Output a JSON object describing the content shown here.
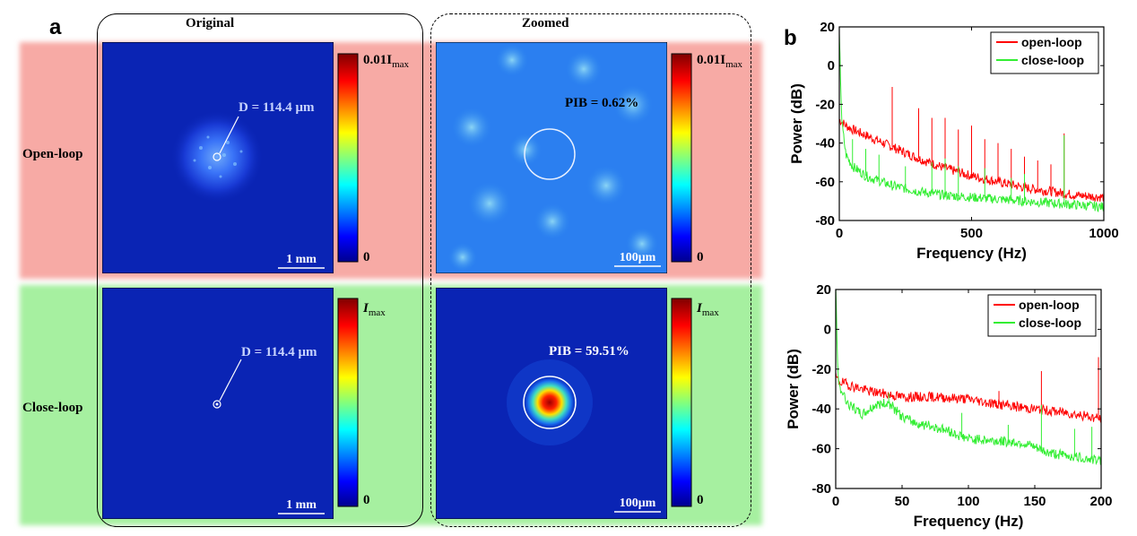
{
  "panel_a": {
    "letter": "a",
    "col_headers": {
      "original": "Original",
      "zoomed": "Zoomed"
    },
    "row_labels": {
      "open": "Open-loop",
      "close": "Close-loop"
    },
    "open_original": {
      "annotation": "D = 114.4 μm",
      "scalebar": "1 mm",
      "cbar_max": "0.01I",
      "cbar_sub": "max",
      "cbar_min": "0"
    },
    "open_zoomed": {
      "annotation": "PIB = 0.62%",
      "scalebar": "100μm",
      "cbar_max": "0.01I",
      "cbar_sub": "max",
      "cbar_min": "0"
    },
    "close_original": {
      "annotation": "D = 114.4 μm",
      "scalebar": "1 mm",
      "cbar_max": "I",
      "cbar_sub": "max",
      "cbar_min": "0"
    },
    "close_zoomed": {
      "annotation": "PIB = 59.51%",
      "scalebar": "100μm",
      "cbar_max": "I",
      "cbar_sub": "max",
      "cbar_min": "0"
    }
  },
  "panel_b": {
    "letter": "b"
  },
  "chart_data": [
    {
      "type": "line",
      "xlabel": "Frequency (Hz)",
      "ylabel": "Power (dB)",
      "xlim": [
        0,
        1000
      ],
      "ylim": [
        -80,
        20
      ],
      "xticks": [
        "0",
        "500",
        "1000"
      ],
      "yticks": [
        "-80",
        "-60",
        "-40",
        "-20",
        "0",
        "20"
      ],
      "legend_position": "top-right",
      "series": [
        {
          "name": "open-loop",
          "color": "#ff0000",
          "x": [
            0,
            10,
            25,
            50,
            100,
            200,
            300,
            400,
            500,
            600,
            700,
            800,
            900,
            1000
          ],
          "y": [
            -28,
            -29,
            -31,
            -33,
            -36,
            -42,
            -48,
            -53,
            -57,
            -60,
            -63,
            -65,
            -67,
            -68
          ],
          "spikes": [
            [
              200,
              -11
            ],
            [
              300,
              -22
            ],
            [
              350,
              -27
            ],
            [
              400,
              -27
            ],
            [
              450,
              -33
            ],
            [
              500,
              -31
            ],
            [
              550,
              -38
            ],
            [
              600,
              -40
            ],
            [
              650,
              -43
            ],
            [
              700,
              -47
            ],
            [
              750,
              -49
            ],
            [
              800,
              -51
            ],
            [
              850,
              -35
            ]
          ]
        },
        {
          "name": "close-loop",
          "color": "#33ee33",
          "x": [
            0,
            10,
            25,
            50,
            100,
            200,
            300,
            400,
            500,
            600,
            700,
            800,
            900,
            1000
          ],
          "y": [
            15,
            -30,
            -46,
            -52,
            -57,
            -62,
            -65,
            -67,
            -68,
            -69,
            -70,
            -71,
            -72,
            -73
          ],
          "spikes": [
            [
              50,
              -38
            ],
            [
              100,
              -43
            ],
            [
              150,
              -46
            ],
            [
              250,
              -52
            ],
            [
              350,
              -50
            ],
            [
              400,
              -48
            ],
            [
              450,
              -52
            ],
            [
              550,
              -53
            ],
            [
              650,
              -58
            ],
            [
              700,
              -56
            ],
            [
              850,
              -36
            ],
            [
              1000,
              -62
            ]
          ]
        }
      ]
    },
    {
      "type": "line",
      "xlabel": "Frequency (Hz)",
      "ylabel": "Power (dB)",
      "xlim": [
        0,
        200
      ],
      "ylim": [
        -80,
        20
      ],
      "xticks": [
        "0",
        "50",
        "100",
        "150",
        "200"
      ],
      "yticks": [
        "-80",
        "-60",
        "-40",
        "-20",
        "0",
        "20"
      ],
      "legend_position": "top-right",
      "series": [
        {
          "name": "open-loop",
          "color": "#ff0000",
          "x": [
            0,
            2,
            10,
            25,
            50,
            75,
            100,
            125,
            150,
            175,
            200
          ],
          "y": [
            -24,
            -26,
            -28,
            -31,
            -34,
            -34,
            -35,
            -38,
            -40,
            -42,
            -45
          ],
          "spikes": [
            [
              155,
              -21
            ],
            [
              78,
              -34
            ],
            [
              123,
              -31
            ],
            [
              198,
              -14
            ]
          ]
        },
        {
          "name": "close-loop",
          "color": "#33ee33",
          "x": [
            0,
            2,
            10,
            20,
            30,
            40,
            50,
            60,
            80,
            100,
            120,
            140,
            160,
            180,
            200
          ],
          "y": [
            20,
            -28,
            -38,
            -43,
            -38,
            -37,
            -44,
            -47,
            -50,
            -55,
            -56,
            -57,
            -62,
            -64,
            -66
          ],
          "spikes": [
            [
              40,
              -32
            ],
            [
              95,
              -42
            ],
            [
              130,
              -48
            ],
            [
              155,
              -38
            ],
            [
              180,
              -50
            ],
            [
              193,
              -49
            ]
          ]
        }
      ]
    }
  ]
}
